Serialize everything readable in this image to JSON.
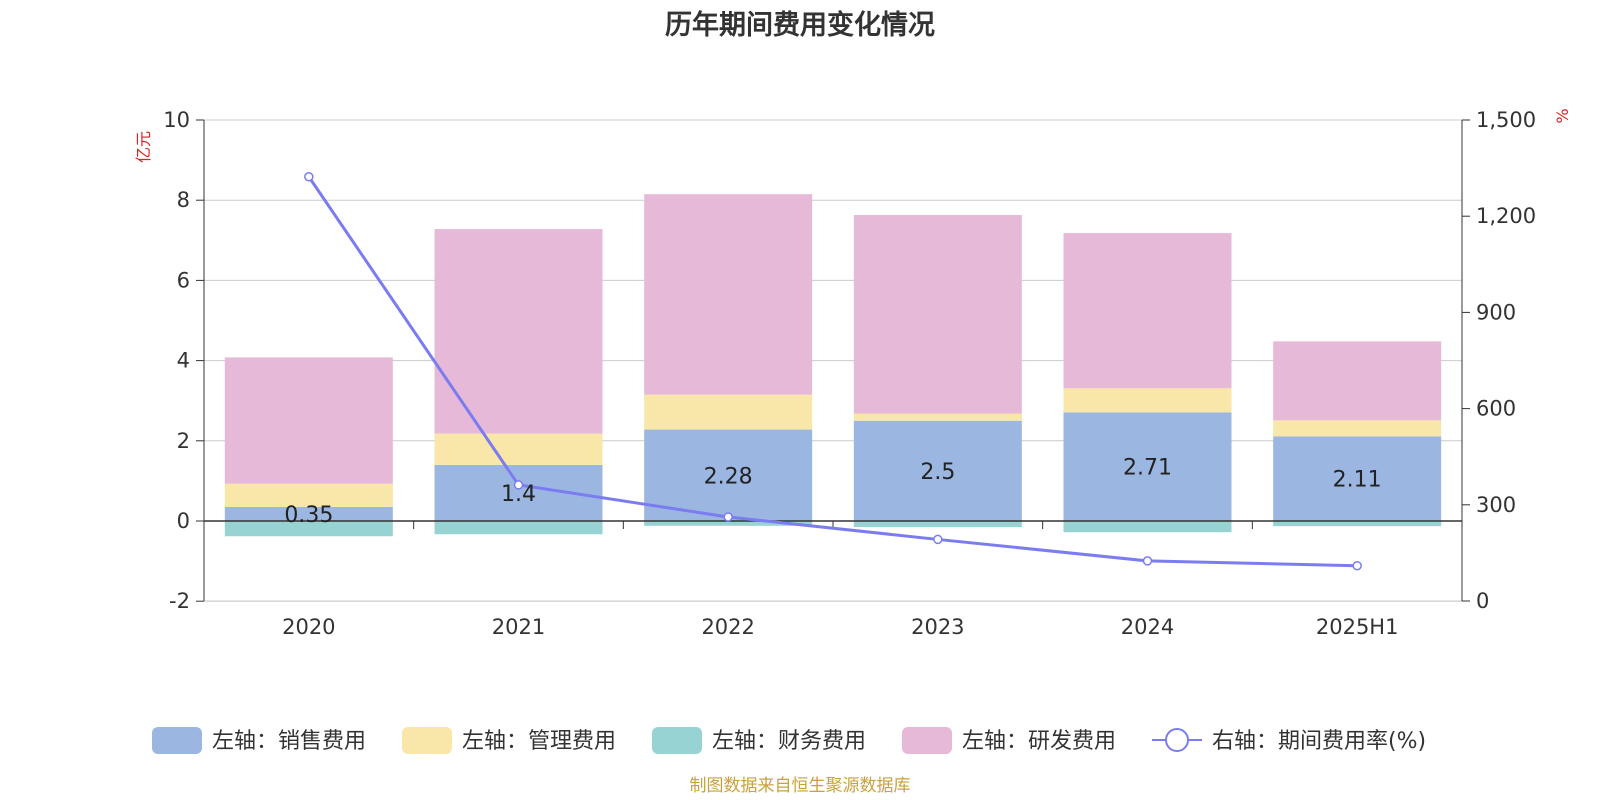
{
  "chart_data": {
    "type": "bar",
    "title": "历年期间费用变化情况",
    "categories": [
      "2020",
      "2021",
      "2022",
      "2023",
      "2024",
      "2025H1"
    ],
    "left_axis": {
      "unit": "亿元",
      "ylim": [
        -2,
        10
      ],
      "ticks": [
        "10",
        "8",
        "6",
        "4",
        "2",
        "0",
        "-2"
      ]
    },
    "right_axis": {
      "unit": "%",
      "ylim": [
        0,
        1500
      ],
      "ticks": [
        "1,500",
        "1,200",
        "900",
        "600",
        "300",
        "0"
      ]
    },
    "series": [
      {
        "name": "左轴：销售费用",
        "kind": "bar",
        "axis": "left",
        "color": "#9bb7e1",
        "values": [
          0.35,
          1.4,
          2.28,
          2.5,
          2.71,
          2.11
        ],
        "data_labels": [
          "0.35",
          "1.4",
          "2.28",
          "2.5",
          "2.71",
          "2.11"
        ]
      },
      {
        "name": "左轴：管理费用",
        "kind": "bar",
        "axis": "left",
        "color": "#f8e7a8",
        "values": [
          0.58,
          0.78,
          0.87,
          0.18,
          0.6,
          0.4
        ]
      },
      {
        "name": "左轴：财务费用",
        "kind": "bar",
        "axis": "left",
        "color": "#98d3d4",
        "values": [
          -0.38,
          -0.33,
          -0.12,
          -0.15,
          -0.28,
          -0.13
        ]
      },
      {
        "name": "左轴：研发费用",
        "kind": "bar",
        "axis": "left",
        "color": "#e7b9d9",
        "values": [
          3.15,
          5.1,
          5.0,
          4.95,
          3.87,
          1.97
        ]
      },
      {
        "name": "右轴：期间费用率(%)",
        "kind": "line",
        "axis": "right",
        "color": "#7b7cf0",
        "values": [
          1323,
          362,
          262,
          192,
          125,
          110
        ]
      }
    ],
    "grid": true,
    "legend_position": "bottom"
  },
  "source_note": "制图数据来自恒生聚源数据库"
}
